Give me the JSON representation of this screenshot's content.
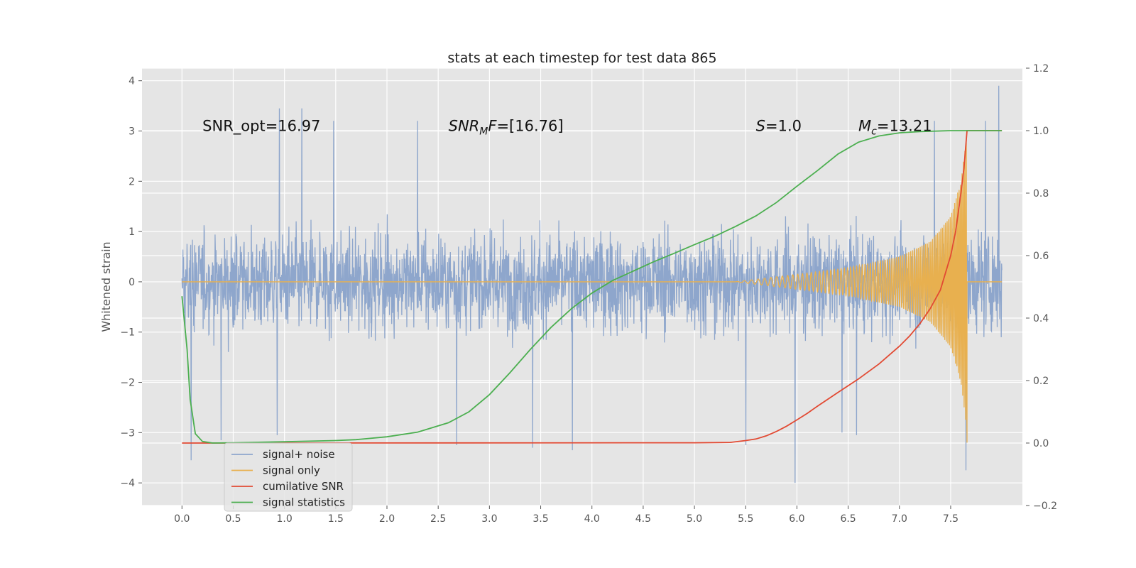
{
  "chart_data": {
    "type": "line",
    "title": "stats at each timestep for test data 865",
    "xlabel": "",
    "ylabel": "Whitened strain",
    "y2label": "",
    "xlim": [
      -0.39,
      8.2
    ],
    "ylim": [
      -4.45,
      4.25
    ],
    "y2lim": [
      -0.2,
      1.2
    ],
    "x_ticks": [
      0.0,
      0.5,
      1.0,
      1.5,
      2.0,
      2.5,
      3.0,
      3.5,
      4.0,
      4.5,
      5.0,
      5.5,
      6.0,
      6.5,
      7.0,
      7.5
    ],
    "x_tick_labels": [
      "0.0",
      "0.5",
      "1.0",
      "1.5",
      "2.0",
      "2.5",
      "3.0",
      "3.5",
      "4.0",
      "4.5",
      "5.0",
      "5.5",
      "6.0",
      "6.5",
      "7.0",
      "7.5"
    ],
    "y_ticks": [
      -4,
      -3,
      -2,
      -1,
      0,
      1,
      2,
      3,
      4
    ],
    "y_tick_labels": [
      "−4",
      "−3",
      "−2",
      "−1",
      "0",
      "1",
      "2",
      "3",
      "4"
    ],
    "y2_ticks": [
      -0.2,
      0.0,
      0.2,
      0.4,
      0.6,
      0.8,
      1.0,
      1.2
    ],
    "y2_tick_labels": [
      "−0.2",
      "0.0",
      "0.2",
      "0.4",
      "0.6",
      "0.8",
      "1.0",
      "1.2"
    ],
    "grid": true,
    "legend_position": "lower-left",
    "annotations": [
      {
        "parts": [
          {
            "text": "SNR_opt=16.97",
            "italic": false
          }
        ],
        "x": 0.2,
        "y": 3.0
      },
      {
        "parts": [
          {
            "text": "SNR",
            "italic": true
          },
          {
            "text": "M",
            "italic": true,
            "sub": true
          },
          {
            "text": "F",
            "italic": true
          },
          {
            "text": "=[16.76]",
            "italic": false
          }
        ],
        "x": 2.6,
        "y": 3.0
      },
      {
        "parts": [
          {
            "text": "S",
            "italic": true
          },
          {
            "text": "=1.0",
            "italic": false
          }
        ],
        "x": 5.6,
        "y": 3.0
      },
      {
        "parts": [
          {
            "text": "M",
            "italic": true
          },
          {
            "text": "c",
            "italic": true,
            "sub": true
          },
          {
            "text": "=13.21",
            "italic": false
          }
        ],
        "x": 6.6,
        "y": 3.0
      }
    ],
    "series": [
      {
        "name": "signal+ noise",
        "axis": "left",
        "color": "#8ea6cc",
        "render": "dense-noise",
        "x_range": [
          0.0,
          8.0
        ],
        "typical_range": [
          -1.5,
          1.5
        ],
        "peaks": [
          {
            "x": 0.09,
            "y": -3.55
          },
          {
            "x": 0.38,
            "y": -3.15
          },
          {
            "x": 0.93,
            "y": -3.05
          },
          {
            "x": 0.95,
            "y": 3.45
          },
          {
            "x": 1.17,
            "y": 3.45
          },
          {
            "x": 1.48,
            "y": 3.2
          },
          {
            "x": 2.3,
            "y": 3.2
          },
          {
            "x": 2.68,
            "y": -3.25
          },
          {
            "x": 3.42,
            "y": -3.3
          },
          {
            "x": 3.81,
            "y": -3.35
          },
          {
            "x": 5.5,
            "y": -3.25
          },
          {
            "x": 5.98,
            "y": -4.0
          },
          {
            "x": 6.44,
            "y": -3.0
          },
          {
            "x": 6.58,
            "y": -3.05
          },
          {
            "x": 7.34,
            "y": 3.2
          },
          {
            "x": 7.65,
            "y": -3.75
          },
          {
            "x": 7.97,
            "y": 3.9
          },
          {
            "x": 7.84,
            "y": 3.2
          }
        ]
      },
      {
        "name": "signal only",
        "axis": "left",
        "color": "#e8b04f",
        "render": "chirp",
        "x_range": [
          5.4,
          7.66
        ],
        "envelope": [
          {
            "x": 5.4,
            "y": 0.0
          },
          {
            "x": 6.0,
            "y": 0.15
          },
          {
            "x": 6.5,
            "y": 0.28
          },
          {
            "x": 7.0,
            "y": 0.5
          },
          {
            "x": 7.3,
            "y": 0.8
          },
          {
            "x": 7.5,
            "y": 1.3
          },
          {
            "x": 7.6,
            "y": 2.0
          },
          {
            "x": 7.66,
            "y": 3.0
          }
        ],
        "end_x": 8.0
      },
      {
        "name": "cumilative SNR",
        "axis": "right",
        "color": "#e24a33",
        "x": [
          0.0,
          5.0,
          5.35,
          5.5,
          5.6,
          5.7,
          5.8,
          5.9,
          6.0,
          6.1,
          6.2,
          6.4,
          6.6,
          6.8,
          7.0,
          7.1,
          7.2,
          7.3,
          7.4,
          7.5,
          7.55,
          7.6,
          7.63,
          7.66,
          8.0
        ],
        "y": [
          0.0,
          0.001,
          0.002,
          0.008,
          0.013,
          0.023,
          0.037,
          0.054,
          0.074,
          0.095,
          0.118,
          0.162,
          0.205,
          0.253,
          0.31,
          0.343,
          0.382,
          0.43,
          0.49,
          0.6,
          0.68,
          0.8,
          0.88,
          1.0,
          1.0
        ]
      },
      {
        "name": "signal statistics",
        "axis": "right",
        "color": "#4caf50",
        "x": [
          0.0,
          0.05,
          0.08,
          0.13,
          0.2,
          0.3,
          0.5,
          1.0,
          1.5,
          1.7,
          2.0,
          2.3,
          2.6,
          2.8,
          3.0,
          3.2,
          3.4,
          3.6,
          3.8,
          4.0,
          4.2,
          4.4,
          4.6,
          4.8,
          5.0,
          5.2,
          5.4,
          5.6,
          5.8,
          6.0,
          6.2,
          6.4,
          6.6,
          6.8,
          7.0,
          7.2,
          7.5,
          7.7,
          8.0
        ],
        "y": [
          0.47,
          0.3,
          0.14,
          0.03,
          0.005,
          0.0,
          0.001,
          0.004,
          0.008,
          0.011,
          0.02,
          0.035,
          0.065,
          0.1,
          0.155,
          0.225,
          0.3,
          0.37,
          0.43,
          0.48,
          0.52,
          0.55,
          0.58,
          0.607,
          0.635,
          0.662,
          0.693,
          0.727,
          0.77,
          0.822,
          0.872,
          0.925,
          0.963,
          0.983,
          0.993,
          0.997,
          1.0,
          1.0,
          1.0
        ]
      }
    ]
  }
}
